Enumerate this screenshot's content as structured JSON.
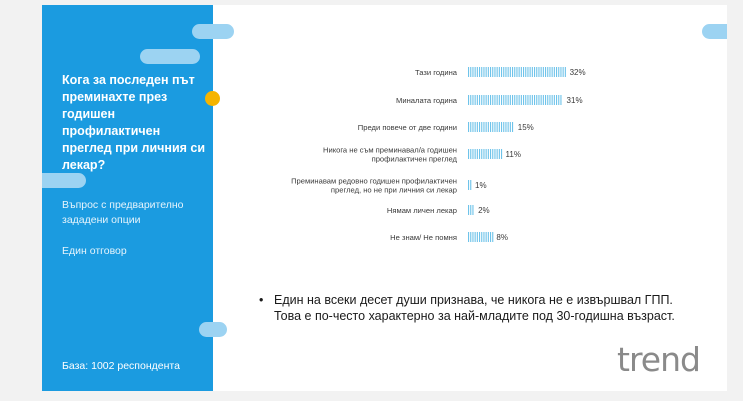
{
  "sidebar": {
    "question": "Кога за последен път преминахте през годишен профилактичен преглед при личния си лекар?",
    "note1": "Въпрос с предварително зададени опции",
    "note2": "Един отговор",
    "base": "База:  1002 респондента"
  },
  "chart_data": {
    "type": "bar",
    "orientation": "horizontal",
    "categories": [
      "Тази година",
      "Миналата година",
      "Преди повече от две години",
      "Никога не съм преминавал/а годишен профилактичен преглед",
      "Преминавам редовно годишен профилактичен преглед, но не при личния си лекар",
      "Нямам личен лекар",
      "Не знам/ Не помня"
    ],
    "category_lines": [
      [
        "Тази година"
      ],
      [
        "Миналата година"
      ],
      [
        "Преди повече от две години"
      ],
      [
        "Никога не съм преминавал/а годишен",
        "профилактичен преглед"
      ],
      [
        "Преминавам редовно годишен профилактичен",
        "преглед, но не при личния си лекар"
      ],
      [
        "Нямам личен лекар"
      ],
      [
        "Не знам/ Не помня"
      ]
    ],
    "values": [
      32,
      31,
      15,
      11,
      1,
      2,
      8
    ],
    "value_labels": [
      "32%",
      "31%",
      "15%",
      "11%",
      "1%",
      "2%",
      "8%"
    ],
    "unit": "%",
    "bar_color": "#6ec3ea"
  },
  "summary": {
    "bullet_mark": "•",
    "text": "Един на всеки десет души признава, че никога не е извършвал ГПП. Това е по-често характерно за най-младите под 30-годишна възраст."
  },
  "logo": {
    "text": "trend",
    "accent": "#f5b400",
    "accent2": "#1b9be0"
  },
  "colors": {
    "sidebar": "#1b9be0",
    "pill": "#9cd3f2",
    "dot": "#f5b400"
  }
}
